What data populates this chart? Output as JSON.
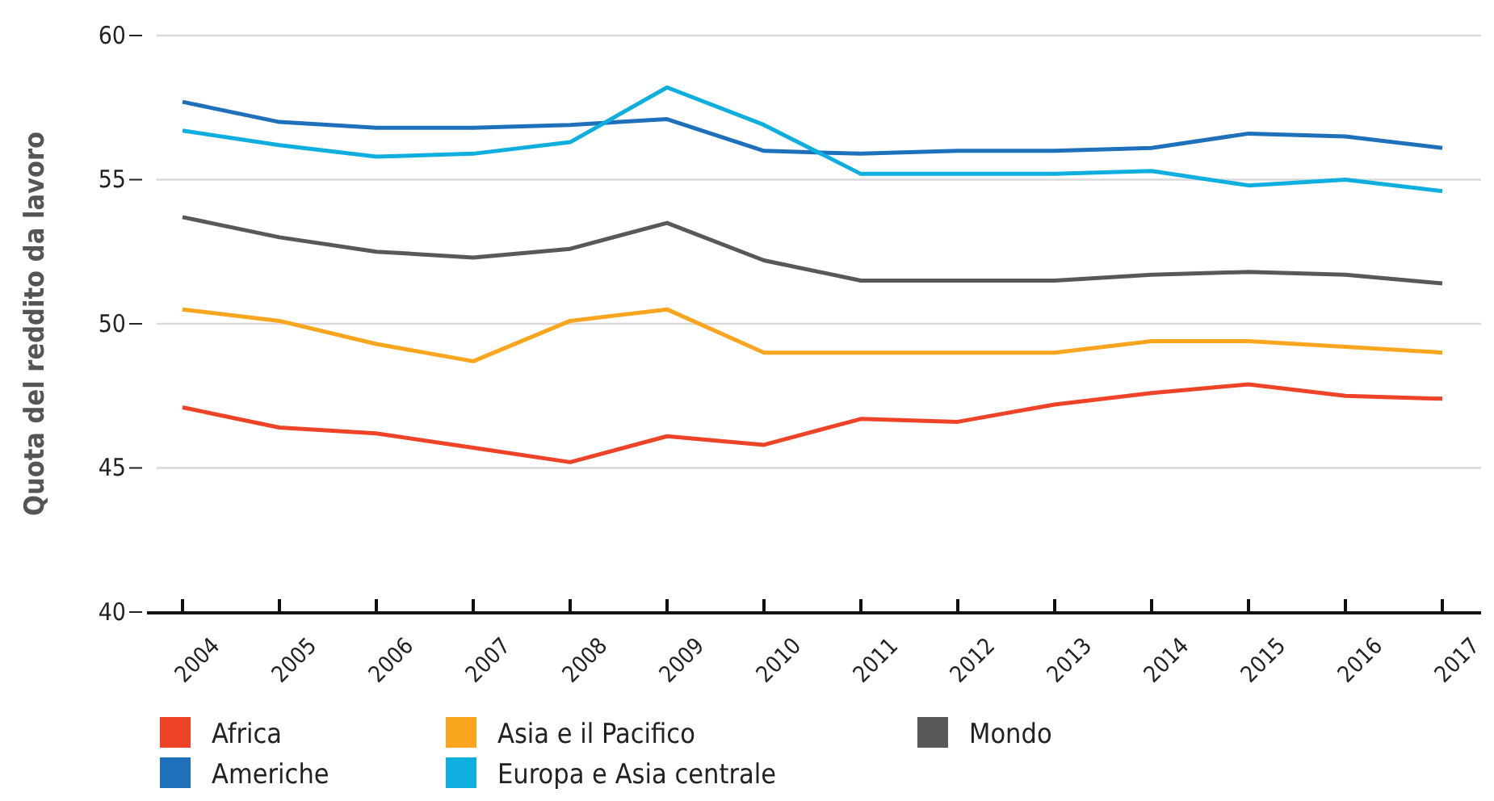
{
  "chart_data": {
    "type": "line",
    "ylabel": "Quota del reddito da lavoro",
    "categories": [
      "2004",
      "2005",
      "2006",
      "2007",
      "2008",
      "2009",
      "2010",
      "2011",
      "2012",
      "2013",
      "2014",
      "2015",
      "2016",
      "2017"
    ],
    "series": [
      {
        "name": "Africa",
        "color": "#ee4327",
        "values": [
          47.1,
          46.4,
          46.2,
          45.7,
          45.2,
          46.1,
          45.8,
          46.7,
          46.6,
          47.2,
          47.6,
          47.9,
          47.5,
          47.4
        ]
      },
      {
        "name": "Americhe",
        "color": "#1f70bb",
        "values": [
          57.7,
          57.0,
          56.8,
          56.8,
          56.9,
          57.1,
          56.0,
          55.9,
          56.0,
          56.0,
          56.1,
          56.6,
          56.5,
          56.1
        ]
      },
      {
        "name": "Asia e il Pacifico",
        "color": "#f9a51d",
        "values": [
          50.5,
          50.1,
          49.3,
          48.7,
          50.1,
          50.5,
          49.0,
          49.0,
          49.0,
          49.0,
          49.4,
          49.4,
          49.2,
          49.0
        ]
      },
      {
        "name": "Europa e Asia centrale",
        "color": "#0eaede",
        "values": [
          56.7,
          56.2,
          55.8,
          55.9,
          56.3,
          58.2,
          56.9,
          55.2,
          55.2,
          55.2,
          55.3,
          54.8,
          55.0,
          54.6
        ]
      },
      {
        "name": "Mondo",
        "color": "#58585a",
        "values": [
          53.7,
          53.0,
          52.5,
          52.3,
          52.6,
          53.5,
          52.2,
          51.5,
          51.5,
          51.5,
          51.7,
          51.8,
          51.7,
          51.4
        ]
      }
    ],
    "ylim": [
      40,
      60
    ],
    "yticks": [
      40,
      45,
      50,
      55,
      60
    ],
    "grid": "y",
    "legend": "bottom",
    "marker": "none",
    "line_style": "solid"
  }
}
